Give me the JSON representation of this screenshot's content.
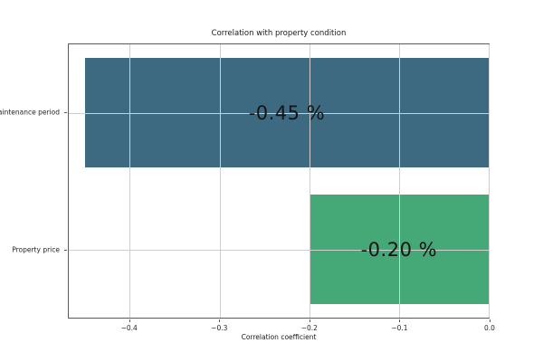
{
  "chart_data": {
    "type": "bar",
    "orientation": "horizontal",
    "title": "Correlation with property condition",
    "xlabel": "Correlation coefficient",
    "ylabel": "",
    "categories": [
      "Maintenance period",
      "Property price"
    ],
    "values": [
      -0.45,
      -0.2
    ],
    "bar_labels": [
      "-0.45 %",
      "-0.20 %"
    ],
    "bar_colors": [
      "#3d6a80",
      "#44a877"
    ],
    "xlim": [
      -0.468,
      0
    ],
    "xticks": [
      -0.4,
      -0.3,
      -0.2,
      -0.1,
      0.0
    ],
    "xtick_labels": [
      "−0.4",
      "−0.3",
      "−0.2",
      "−0.1",
      "0.0"
    ],
    "bar_height_frac": 0.8,
    "grid": true,
    "grid_on_top": true,
    "legend": "none",
    "colors": {
      "grid": "#cfcfcf",
      "spine": "#5a5a5a",
      "tick_text": "#262626",
      "bar_label_text": "#141414",
      "background": "#ffffff"
    }
  }
}
